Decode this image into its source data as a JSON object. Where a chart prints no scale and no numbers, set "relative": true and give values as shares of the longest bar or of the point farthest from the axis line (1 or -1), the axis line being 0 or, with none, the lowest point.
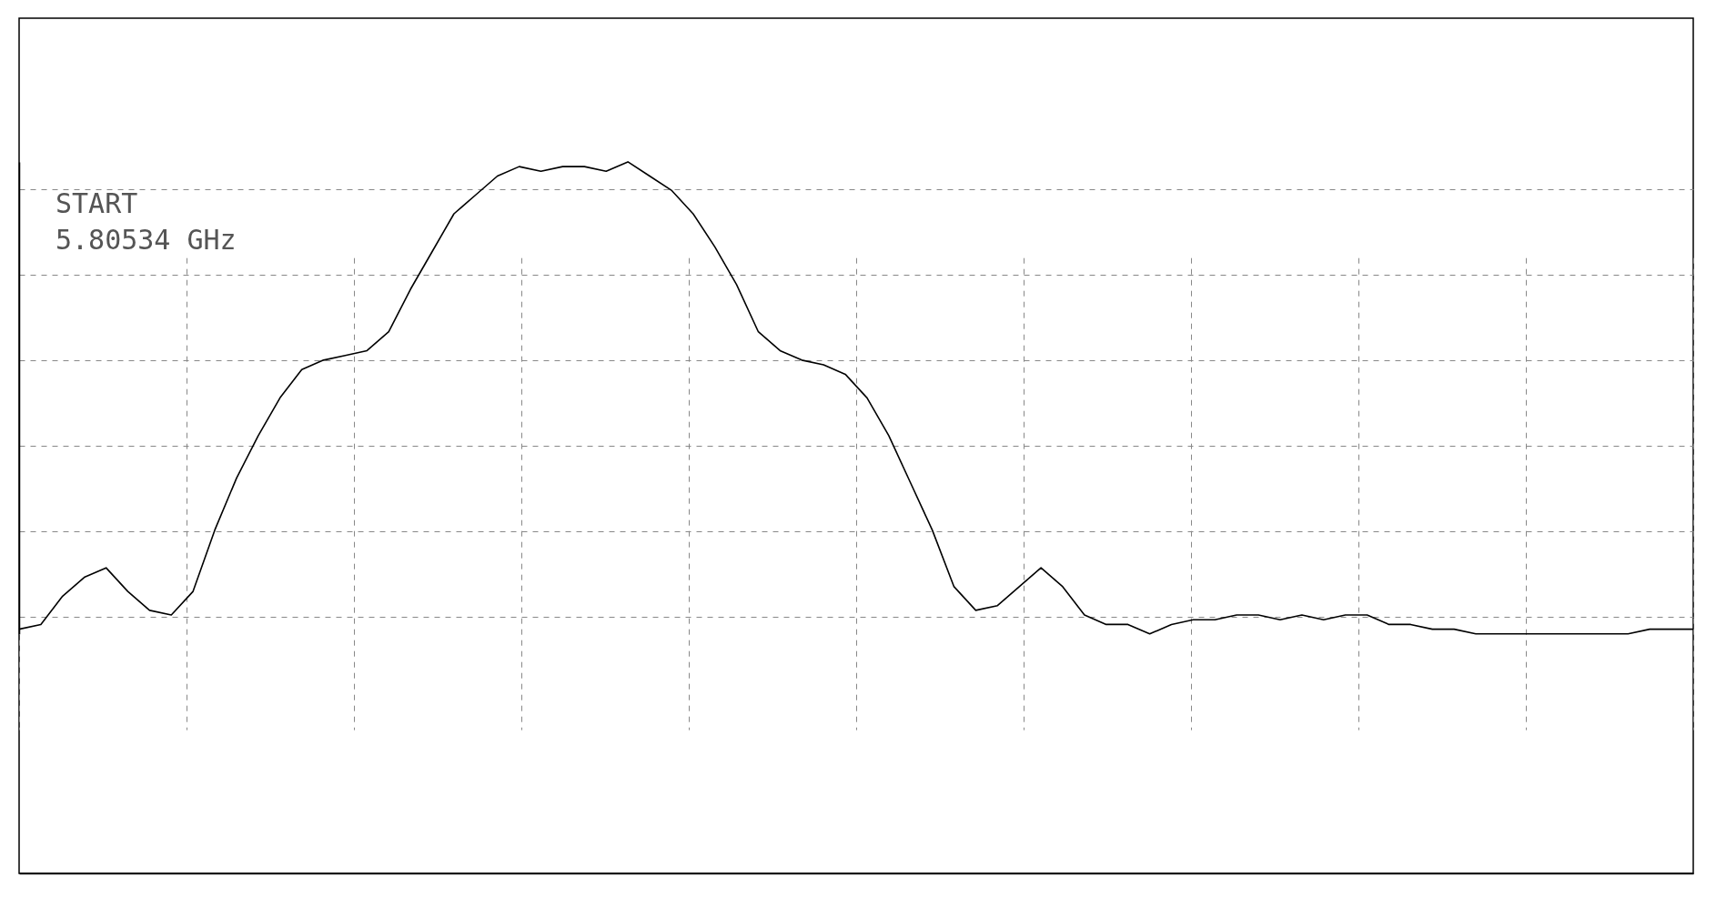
{
  "chart_data": {
    "type": "line",
    "relative": true,
    "grid": true,
    "line_style": "solid",
    "annotations": [
      "START",
      "5.80534 GHz"
    ],
    "categories": [
      null,
      null,
      null,
      null,
      null,
      null,
      null,
      null,
      null,
      null,
      null,
      null,
      null,
      null,
      null,
      null,
      null,
      null,
      null,
      null,
      null,
      null,
      null,
      null,
      null,
      null,
      null,
      null,
      null,
      null,
      null,
      null,
      null,
      null,
      null,
      null,
      null,
      null,
      null,
      null,
      null,
      null,
      null,
      null,
      null,
      null,
      null,
      null,
      null,
      null,
      null,
      null,
      null,
      null,
      null,
      null,
      null,
      null,
      null,
      null,
      null,
      null,
      null,
      null,
      null,
      null,
      null,
      null,
      null,
      null,
      null,
      null,
      null,
      null,
      null,
      null,
      null,
      null
    ],
    "series": [
      {
        "color": "#000000",
        "values": [
          0.01,
          0.02,
          0.08,
          0.12,
          0.14,
          0.09,
          0.05,
          0.04,
          0.09,
          0.22,
          0.33,
          0.42,
          0.5,
          0.56,
          0.58,
          0.59,
          0.6,
          0.64,
          0.73,
          0.81,
          0.89,
          0.93,
          0.97,
          0.99,
          0.98,
          0.99,
          0.99,
          0.98,
          1,
          0.97,
          0.94,
          0.89,
          0.82,
          0.74,
          0.64,
          0.6,
          0.58,
          0.57,
          0.55,
          0.5,
          0.42,
          0.32,
          0.22,
          0.1,
          0.05,
          0.06,
          0.1,
          0.14,
          0.1,
          0.04,
          0.02,
          0.02,
          0,
          0.02,
          0.03,
          0.03,
          0.04,
          0.04,
          0.03,
          0.04,
          0.03,
          0.04,
          0.04,
          0.02,
          0.02,
          0.01,
          0.01,
          0,
          0,
          0,
          0,
          0,
          0,
          0,
          0,
          0.01,
          0.01,
          0.01
        ]
      }
    ]
  }
}
